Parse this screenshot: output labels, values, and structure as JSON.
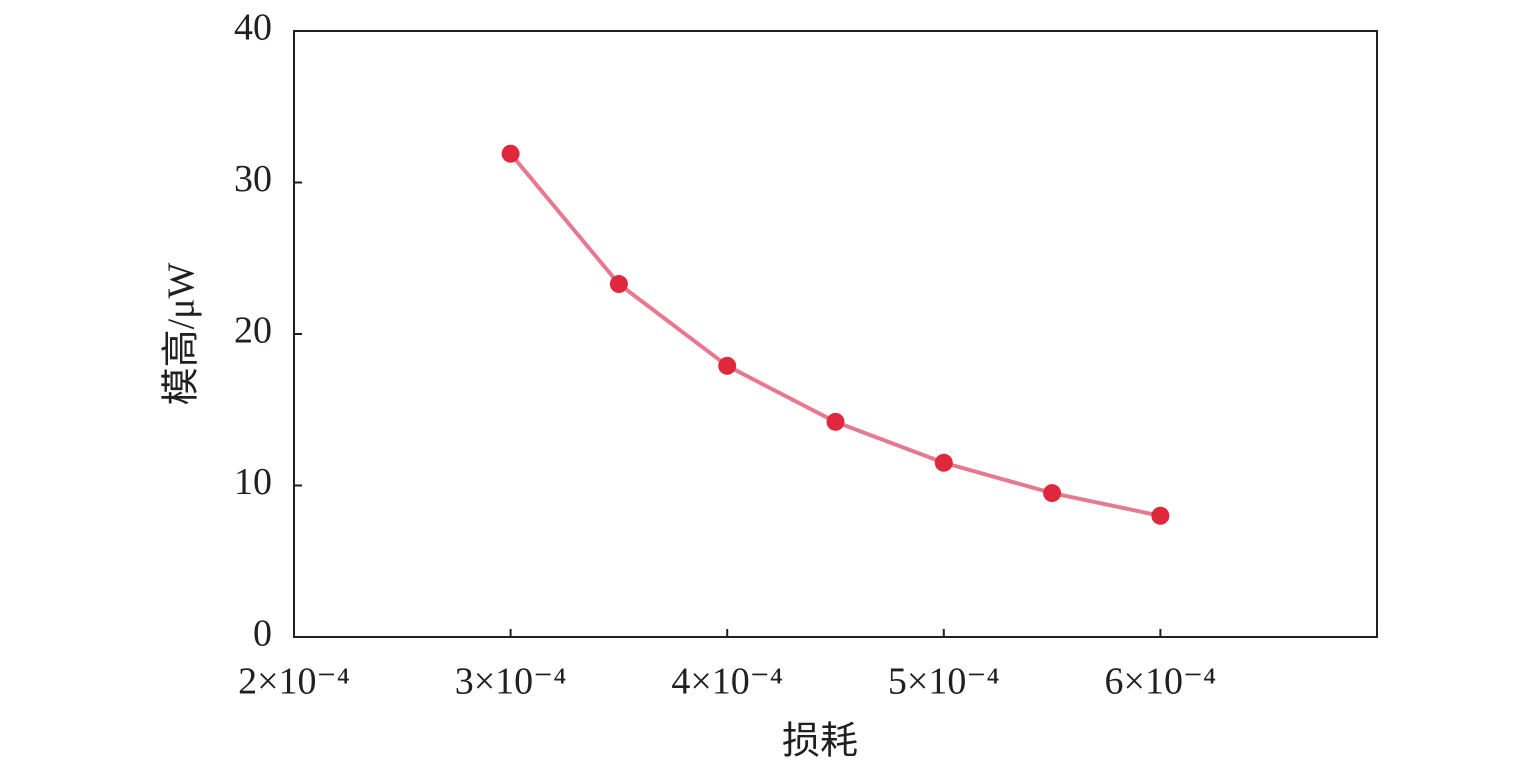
{
  "chart_data": {
    "type": "line",
    "x_label": "损耗",
    "y_label": "模高/μW",
    "x": [
      0.0003,
      0.00035,
      0.0004,
      0.00045,
      0.0005,
      0.00055,
      0.0006
    ],
    "values": [
      31.9,
      23.3,
      17.9,
      14.2,
      11.5,
      9.5,
      8.0
    ],
    "color": "#e0283c",
    "line_color": "#e87890",
    "xlim": [
      0.0002,
      0.0007
    ],
    "xticks": [
      {
        "value": 0.0002,
        "label": "2×10⁻⁴"
      },
      {
        "value": 0.0003,
        "label": "3×10⁻⁴"
      },
      {
        "value": 0.0004,
        "label": "4×10⁻⁴"
      },
      {
        "value": 0.0005,
        "label": "5×10⁻⁴"
      },
      {
        "value": 0.0006,
        "label": "6×10⁻⁴"
      }
    ],
    "ylim": [
      0,
      40
    ],
    "yticks": [
      0,
      10,
      20,
      30,
      40
    ],
    "grid": false
  }
}
